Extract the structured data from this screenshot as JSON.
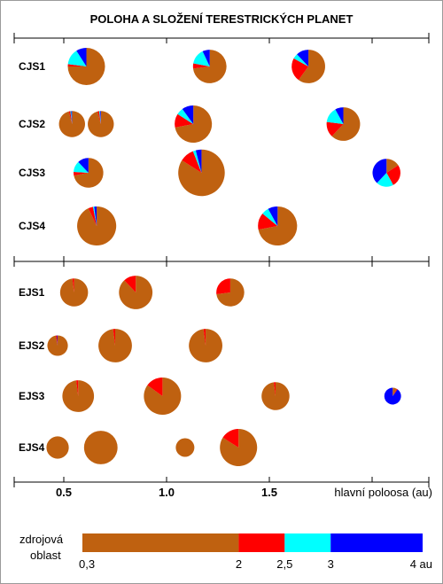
{
  "chart_data": {
    "type": "pie",
    "title": "POLOHA A SLOŽENÍ TERESTRICKÝCH PLANET",
    "xlabel": "hlavní poloosa (au)",
    "x_ticks": [
      "0.5",
      "1.0",
      "1.5"
    ],
    "xlim": [
      0.4,
      2.25
    ],
    "source_colors": {
      "0.3-2": "#bf6110",
      "2-2.5": "#ff0000",
      "2.5-3": "#00ffff",
      "3-4": "#0000ff"
    },
    "legend": {
      "title_line1": "zdrojová",
      "title_line2": "oblast",
      "ticks": [
        "0,3",
        "2",
        "2,5",
        "3",
        "4 au"
      ],
      "bounds": [
        0.3,
        2,
        2.5,
        3,
        4
      ]
    },
    "groups": [
      "CJS",
      "EJS"
    ],
    "simulations": [
      {
        "name": "CJS1",
        "group": "CJS",
        "planets": [
          {
            "a": 0.61,
            "size": 1.0,
            "composition": [
              0.75,
              0.02,
              0.14,
              0.09
            ]
          },
          {
            "a": 1.21,
            "size": 0.9,
            "composition": [
              0.73,
              0.05,
              0.15,
              0.07
            ]
          },
          {
            "a": 1.69,
            "size": 0.9,
            "composition": [
              0.6,
              0.23,
              0.05,
              0.12
            ]
          }
        ]
      },
      {
        "name": "CJS2",
        "group": "CJS",
        "planets": [
          {
            "a": 0.54,
            "size": 0.7,
            "composition": [
              0.96,
              0.02,
              0.01,
              0.01
            ]
          },
          {
            "a": 0.68,
            "size": 0.7,
            "composition": [
              0.96,
              0.02,
              0.01,
              0.01
            ]
          },
          {
            "a": 1.13,
            "size": 1.0,
            "composition": [
              0.72,
              0.12,
              0.06,
              0.1
            ]
          },
          {
            "a": 1.86,
            "size": 0.9,
            "composition": [
              0.62,
              0.15,
              0.15,
              0.08
            ]
          }
        ]
      },
      {
        "name": "CJS3",
        "group": "CJS",
        "planets": [
          {
            "a": 0.62,
            "size": 0.8,
            "composition": [
              0.72,
              0.04,
              0.12,
              0.12
            ]
          },
          {
            "a": 1.17,
            "size": 1.25,
            "composition": [
              0.84,
              0.1,
              0.02,
              0.04
            ]
          },
          {
            "a": 2.07,
            "size": 0.75,
            "composition": [
              0.16,
              0.26,
              0.2,
              0.38
            ]
          }
        ]
      },
      {
        "name": "CJS4",
        "group": "CJS",
        "planets": [
          {
            "a": 0.66,
            "size": 1.05,
            "composition": [
              0.93,
              0.04,
              0.01,
              0.02
            ]
          },
          {
            "a": 1.54,
            "size": 1.05,
            "composition": [
              0.72,
              0.14,
              0.06,
              0.08
            ]
          }
        ]
      },
      {
        "name": "EJS1",
        "group": "EJS",
        "planets": [
          {
            "a": 0.55,
            "size": 0.75,
            "composition": [
              0.98,
              0.02,
              0.0,
              0.0
            ]
          },
          {
            "a": 0.85,
            "size": 0.9,
            "composition": [
              0.88,
              0.12,
              0.0,
              0.0
            ]
          },
          {
            "a": 1.31,
            "size": 0.75,
            "composition": [
              0.73,
              0.27,
              0.0,
              0.0
            ]
          }
        ]
      },
      {
        "name": "EJS2",
        "group": "EJS",
        "planets": [
          {
            "a": 0.47,
            "size": 0.55,
            "composition": [
              0.97,
              0.02,
              0.0,
              0.01
            ]
          },
          {
            "a": 0.75,
            "size": 0.9,
            "composition": [
              0.98,
              0.02,
              0.0,
              0.0
            ]
          },
          {
            "a": 1.19,
            "size": 0.9,
            "composition": [
              0.98,
              0.02,
              0.0,
              0.0
            ]
          }
        ]
      },
      {
        "name": "EJS3",
        "group": "EJS",
        "planets": [
          {
            "a": 0.57,
            "size": 0.85,
            "composition": [
              0.98,
              0.02,
              0.0,
              0.0
            ]
          },
          {
            "a": 0.98,
            "size": 1.0,
            "composition": [
              0.85,
              0.15,
              0.0,
              0.0
            ]
          },
          {
            "a": 1.53,
            "size": 0.75,
            "composition": [
              0.98,
              0.02,
              0.0,
              0.0
            ]
          },
          {
            "a": 2.1,
            "size": 0.45,
            "composition": [
              0.08,
              0.02,
              0.0,
              0.9
            ]
          }
        ]
      },
      {
        "name": "EJS4",
        "group": "EJS",
        "planets": [
          {
            "a": 0.47,
            "size": 0.6,
            "composition": [
              1.0,
              0.0,
              0.0,
              0.0
            ]
          },
          {
            "a": 0.68,
            "size": 0.9,
            "composition": [
              1.0,
              0.0,
              0.0,
              0.0
            ]
          },
          {
            "a": 1.09,
            "size": 0.5,
            "composition": [
              1.0,
              0.0,
              0.0,
              0.0
            ]
          },
          {
            "a": 1.35,
            "size": 1.0,
            "composition": [
              0.84,
              0.16,
              0.0,
              0.0
            ]
          }
        ]
      }
    ]
  }
}
